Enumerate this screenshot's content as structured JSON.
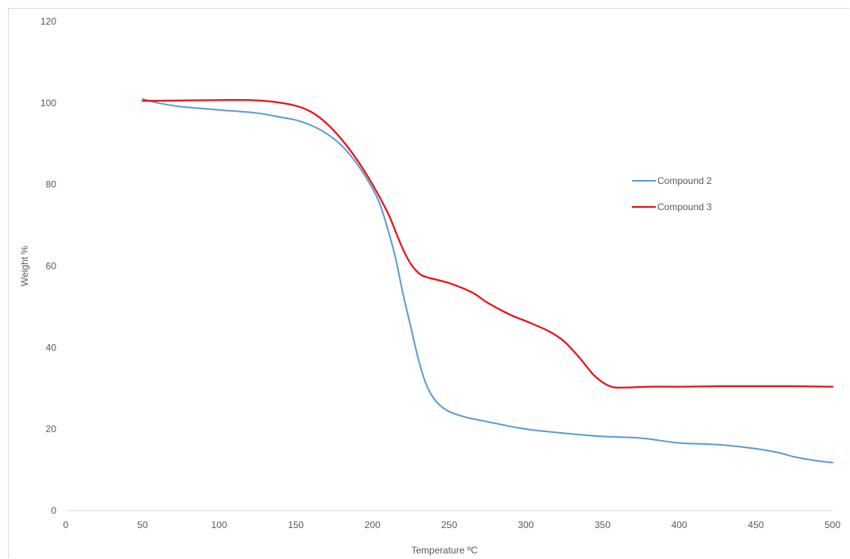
{
  "chart_data": {
    "type": "line",
    "title": "",
    "xlabel": "Temperature ºC",
    "ylabel": "Weight %",
    "xlim": [
      0,
      500
    ],
    "ylim": [
      0,
      120
    ],
    "x_ticks": [
      0,
      50,
      100,
      150,
      200,
      250,
      300,
      350,
      400,
      450,
      500
    ],
    "y_ticks": [
      0,
      20,
      40,
      60,
      80,
      100,
      120
    ],
    "grid": false,
    "legend_position": "right",
    "series": [
      {
        "name": "Compound 2",
        "color": "#5b9bd5",
        "points": [
          [
            50,
            101
          ],
          [
            60,
            100
          ],
          [
            75,
            99.1
          ],
          [
            100,
            98.3
          ],
          [
            125,
            97.5
          ],
          [
            140,
            96.5
          ],
          [
            150,
            95.8
          ],
          [
            160,
            94.5
          ],
          [
            170,
            92.5
          ],
          [
            180,
            89.5
          ],
          [
            190,
            85
          ],
          [
            200,
            79
          ],
          [
            205,
            75
          ],
          [
            210,
            69
          ],
          [
            215,
            62
          ],
          [
            220,
            53
          ],
          [
            225,
            45
          ],
          [
            230,
            37
          ],
          [
            235,
            31
          ],
          [
            240,
            27.5
          ],
          [
            245,
            25.5
          ],
          [
            250,
            24.3
          ],
          [
            260,
            23
          ],
          [
            275,
            21.8
          ],
          [
            300,
            20
          ],
          [
            325,
            19
          ],
          [
            350,
            18.2
          ],
          [
            375,
            17.8
          ],
          [
            400,
            16.6
          ],
          [
            425,
            16.2
          ],
          [
            450,
            15.2
          ],
          [
            465,
            14.2
          ],
          [
            475,
            13.2
          ],
          [
            490,
            12.2
          ],
          [
            500,
            11.8
          ]
        ]
      },
      {
        "name": "Compound 3",
        "color": "#e8141a",
        "points": [
          [
            50,
            100.5
          ],
          [
            75,
            100.6
          ],
          [
            100,
            100.7
          ],
          [
            120,
            100.7
          ],
          [
            135,
            100.3
          ],
          [
            150,
            99.3
          ],
          [
            160,
            97.8
          ],
          [
            170,
            95
          ],
          [
            180,
            91
          ],
          [
            190,
            86
          ],
          [
            200,
            80
          ],
          [
            210,
            73
          ],
          [
            215,
            68.5
          ],
          [
            220,
            64
          ],
          [
            225,
            60.5
          ],
          [
            230,
            58.3
          ],
          [
            235,
            57.3
          ],
          [
            250,
            55.8
          ],
          [
            265,
            53.5
          ],
          [
            275,
            51
          ],
          [
            290,
            48
          ],
          [
            300,
            46.5
          ],
          [
            315,
            44
          ],
          [
            325,
            41.5
          ],
          [
            335,
            37.5
          ],
          [
            345,
            33
          ],
          [
            355,
            30.5
          ],
          [
            365,
            30.2
          ],
          [
            380,
            30.4
          ],
          [
            400,
            30.4
          ],
          [
            425,
            30.5
          ],
          [
            450,
            30.5
          ],
          [
            475,
            30.5
          ],
          [
            500,
            30.4
          ]
        ]
      }
    ]
  }
}
